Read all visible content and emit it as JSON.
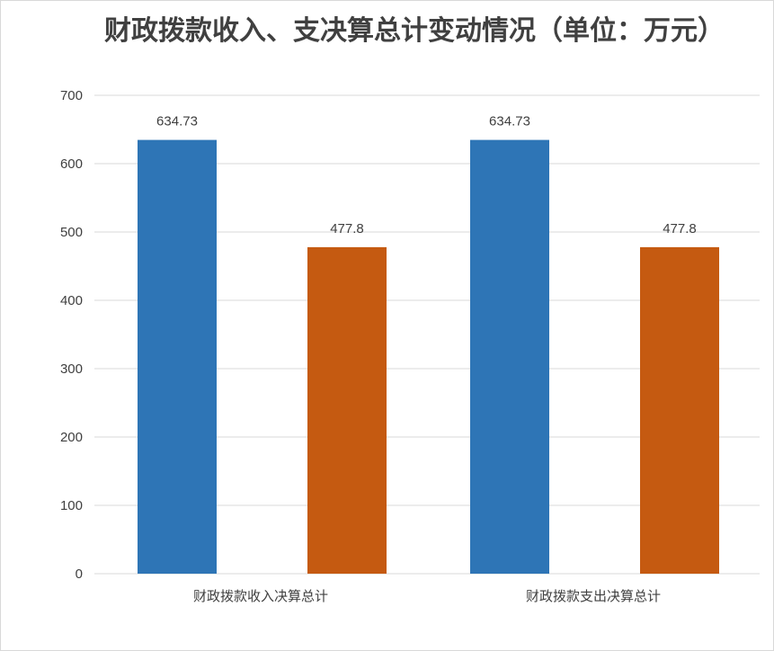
{
  "chart_data": {
    "type": "bar",
    "title": "财政拨款收入、支决算总计变动情况（单位：万元）",
    "categories": [
      "财政拨款收入决算总计",
      "财政拨款支出决算总计"
    ],
    "series": [
      {
        "values": [
          634.73,
          634.73
        ],
        "color": "#2e75b6"
      },
      {
        "values": [
          477.8,
          477.8
        ],
        "color": "#c55a11"
      }
    ],
    "data_labels": [
      [
        "634.73",
        "477.8"
      ],
      [
        "634.73",
        "477.8"
      ]
    ],
    "ylim": [
      0,
      700
    ],
    "yticks": [
      0,
      100,
      200,
      300,
      400,
      500,
      600,
      700
    ],
    "grid": true,
    "xlabel": "",
    "ylabel": ""
  }
}
